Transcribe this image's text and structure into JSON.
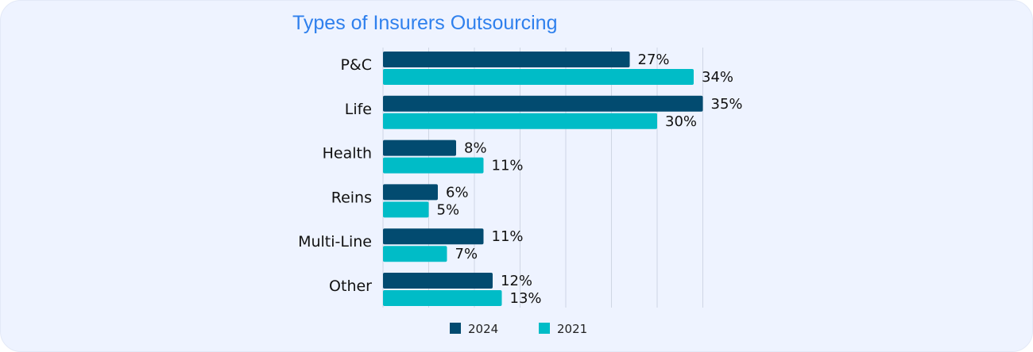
{
  "chart_data": {
    "type": "bar",
    "orientation": "horizontal",
    "title": "Types of Insurers Outsourcing",
    "categories": [
      "P&C",
      "Life",
      "Health",
      "Reins",
      "Multi-Line",
      "Other"
    ],
    "series": [
      {
        "name": "2024",
        "color": "#024b70",
        "values": [
          27,
          35,
          8,
          6,
          11,
          12
        ],
        "labels": [
          "27%",
          "35%",
          "8%",
          "6%",
          "11%",
          "12%"
        ]
      },
      {
        "name": "2021",
        "color": "#00bcc7",
        "values": [
          34,
          30,
          11,
          5,
          7,
          13
        ],
        "labels": [
          "34%",
          "30%",
          "11%",
          "5%",
          "7%",
          "13%"
        ]
      }
    ],
    "xlim": [
      0,
      35
    ],
    "grid": true,
    "legend_position": "bottom"
  }
}
